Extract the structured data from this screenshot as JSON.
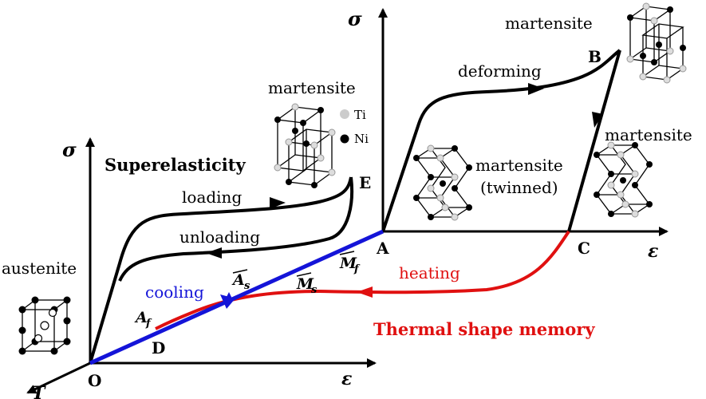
{
  "labels": {
    "sigma_left": "σ",
    "sigma_right": "σ",
    "epsilon_left": "ε",
    "epsilon_right": "ε",
    "T": "T",
    "O": "O",
    "A": "A",
    "B": "B",
    "C": "C",
    "D": "D",
    "E": "E",
    "superelasticity": "Superelasticity",
    "thermal_shape_memory": "Thermal shape memory",
    "loading": "loading",
    "unloading": "unloading",
    "deforming": "deforming",
    "heating": "heating",
    "cooling": "cooling",
    "austenite": "austenite",
    "martensite_top": "martensite",
    "martensite_mid": "martensite",
    "martensite_right": "martensite",
    "martensite_twinned": "martensite",
    "twinned": "(twinned)",
    "Af": "A",
    "Af_sub": "f",
    "As": "A",
    "As_sub": "s",
    "Ms": "M",
    "Ms_sub": "s",
    "Mf": "M",
    "Mf_sub": "f",
    "legend_ti": "Ti",
    "legend_ni": "Ni"
  },
  "colors": {
    "axis": "#000000",
    "cooling": "#1414d8",
    "heating": "#e01010",
    "thermal_text": "#e01010"
  }
}
